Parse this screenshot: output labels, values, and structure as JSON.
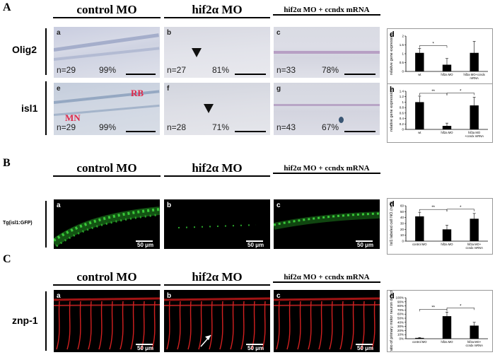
{
  "sections": {
    "A": "A",
    "B": "B",
    "C": "C"
  },
  "headers": {
    "control": "control MO",
    "hif2": "hif2α MO",
    "rescue": "hif2α MO + ccndx mRNA"
  },
  "rows": {
    "olig2": "Olig2",
    "isl1": "isl1",
    "tg": "Tg(isl1:GFP)",
    "znp1": "znp-1"
  },
  "panel_letters": {
    "a": "a",
    "b": "b",
    "c": "c",
    "d": "d",
    "e": "e",
    "f": "f",
    "g": "g",
    "h": "h"
  },
  "annot": {
    "rb": "RB",
    "mn": "MN"
  },
  "stats": {
    "a": {
      "n": "n=29",
      "p": "99%"
    },
    "b": {
      "n": "n=27",
      "p": "81%"
    },
    "c": {
      "n": "n=33",
      "p": "78%"
    },
    "e": {
      "n": "n=29",
      "p": "99%"
    },
    "f": {
      "n": "n=28",
      "p": "71%"
    },
    "g": {
      "n": "n=43",
      "p": "67%"
    }
  },
  "scalebar": "50 μm",
  "chart_data": [
    {
      "id": "Ad",
      "type": "bar",
      "categories": [
        "wt",
        "hif2a MO",
        "hif2a MO+ccndx mRNA"
      ],
      "values": [
        1.05,
        0.38,
        1.05
      ],
      "errors": [
        0.25,
        0.35,
        0.65
      ],
      "ylabel": "relative gene expression",
      "ylim": [
        0,
        2
      ],
      "yticks": [
        "0",
        "0.5",
        "1",
        "1.5",
        "2"
      ],
      "sig": [
        {
          "a": 0,
          "b": 1,
          "mark": "*"
        }
      ]
    },
    {
      "id": "Ah",
      "type": "bar",
      "categories": [
        "wt",
        "hif2a MO",
        "hif2a MO +ccndx mRNA"
      ],
      "values": [
        1.0,
        0.13,
        0.88
      ],
      "errors": [
        0.22,
        0.1,
        0.3
      ],
      "ylabel": "relative gene expression",
      "ylim": [
        0,
        1.4
      ],
      "yticks": [
        "0",
        "0.2",
        "0.4",
        "0.6",
        "0.8",
        "1",
        "1.2",
        "1.4"
      ],
      "sig": [
        {
          "a": 0,
          "b": 1,
          "mark": "**"
        },
        {
          "a": 1,
          "b": 2,
          "mark": "*"
        }
      ]
    },
    {
      "id": "Bd",
      "type": "bar",
      "categories": [
        "control MO",
        "hif2a MO",
        "hif2a MO+ ccndx mRNA"
      ],
      "values": [
        42,
        20,
        38
      ],
      "errors": [
        7,
        7,
        9
      ],
      "ylabel": "Isl1 labeled cell NO.(n=5)",
      "ylim": [
        0,
        60
      ],
      "yticks": [
        "0",
        "10",
        "20",
        "30",
        "40",
        "50",
        "60"
      ],
      "sig": [
        {
          "a": 0,
          "b": 1,
          "mark": "**"
        },
        {
          "a": 1,
          "b": 2,
          "mark": "*"
        }
      ]
    },
    {
      "id": "Cd",
      "type": "bar",
      "categories": [
        "control MO",
        "hif2a MO",
        "hif2a MO+ ccndx mRNA"
      ],
      "values": [
        2,
        55,
        32
      ],
      "errors": [
        1,
        10,
        8
      ],
      "ylabel": "ratio of primary motor neuron defect(%)",
      "ylim": [
        0,
        100
      ],
      "yticks": [
        "0%",
        "10%",
        "20%",
        "30%",
        "40%",
        "50%",
        "60%",
        "70%",
        "80%",
        "90%",
        "100%"
      ],
      "sig": [
        {
          "a": 0,
          "b": 1,
          "mark": "**"
        },
        {
          "a": 1,
          "b": 2,
          "mark": "*"
        }
      ]
    }
  ]
}
